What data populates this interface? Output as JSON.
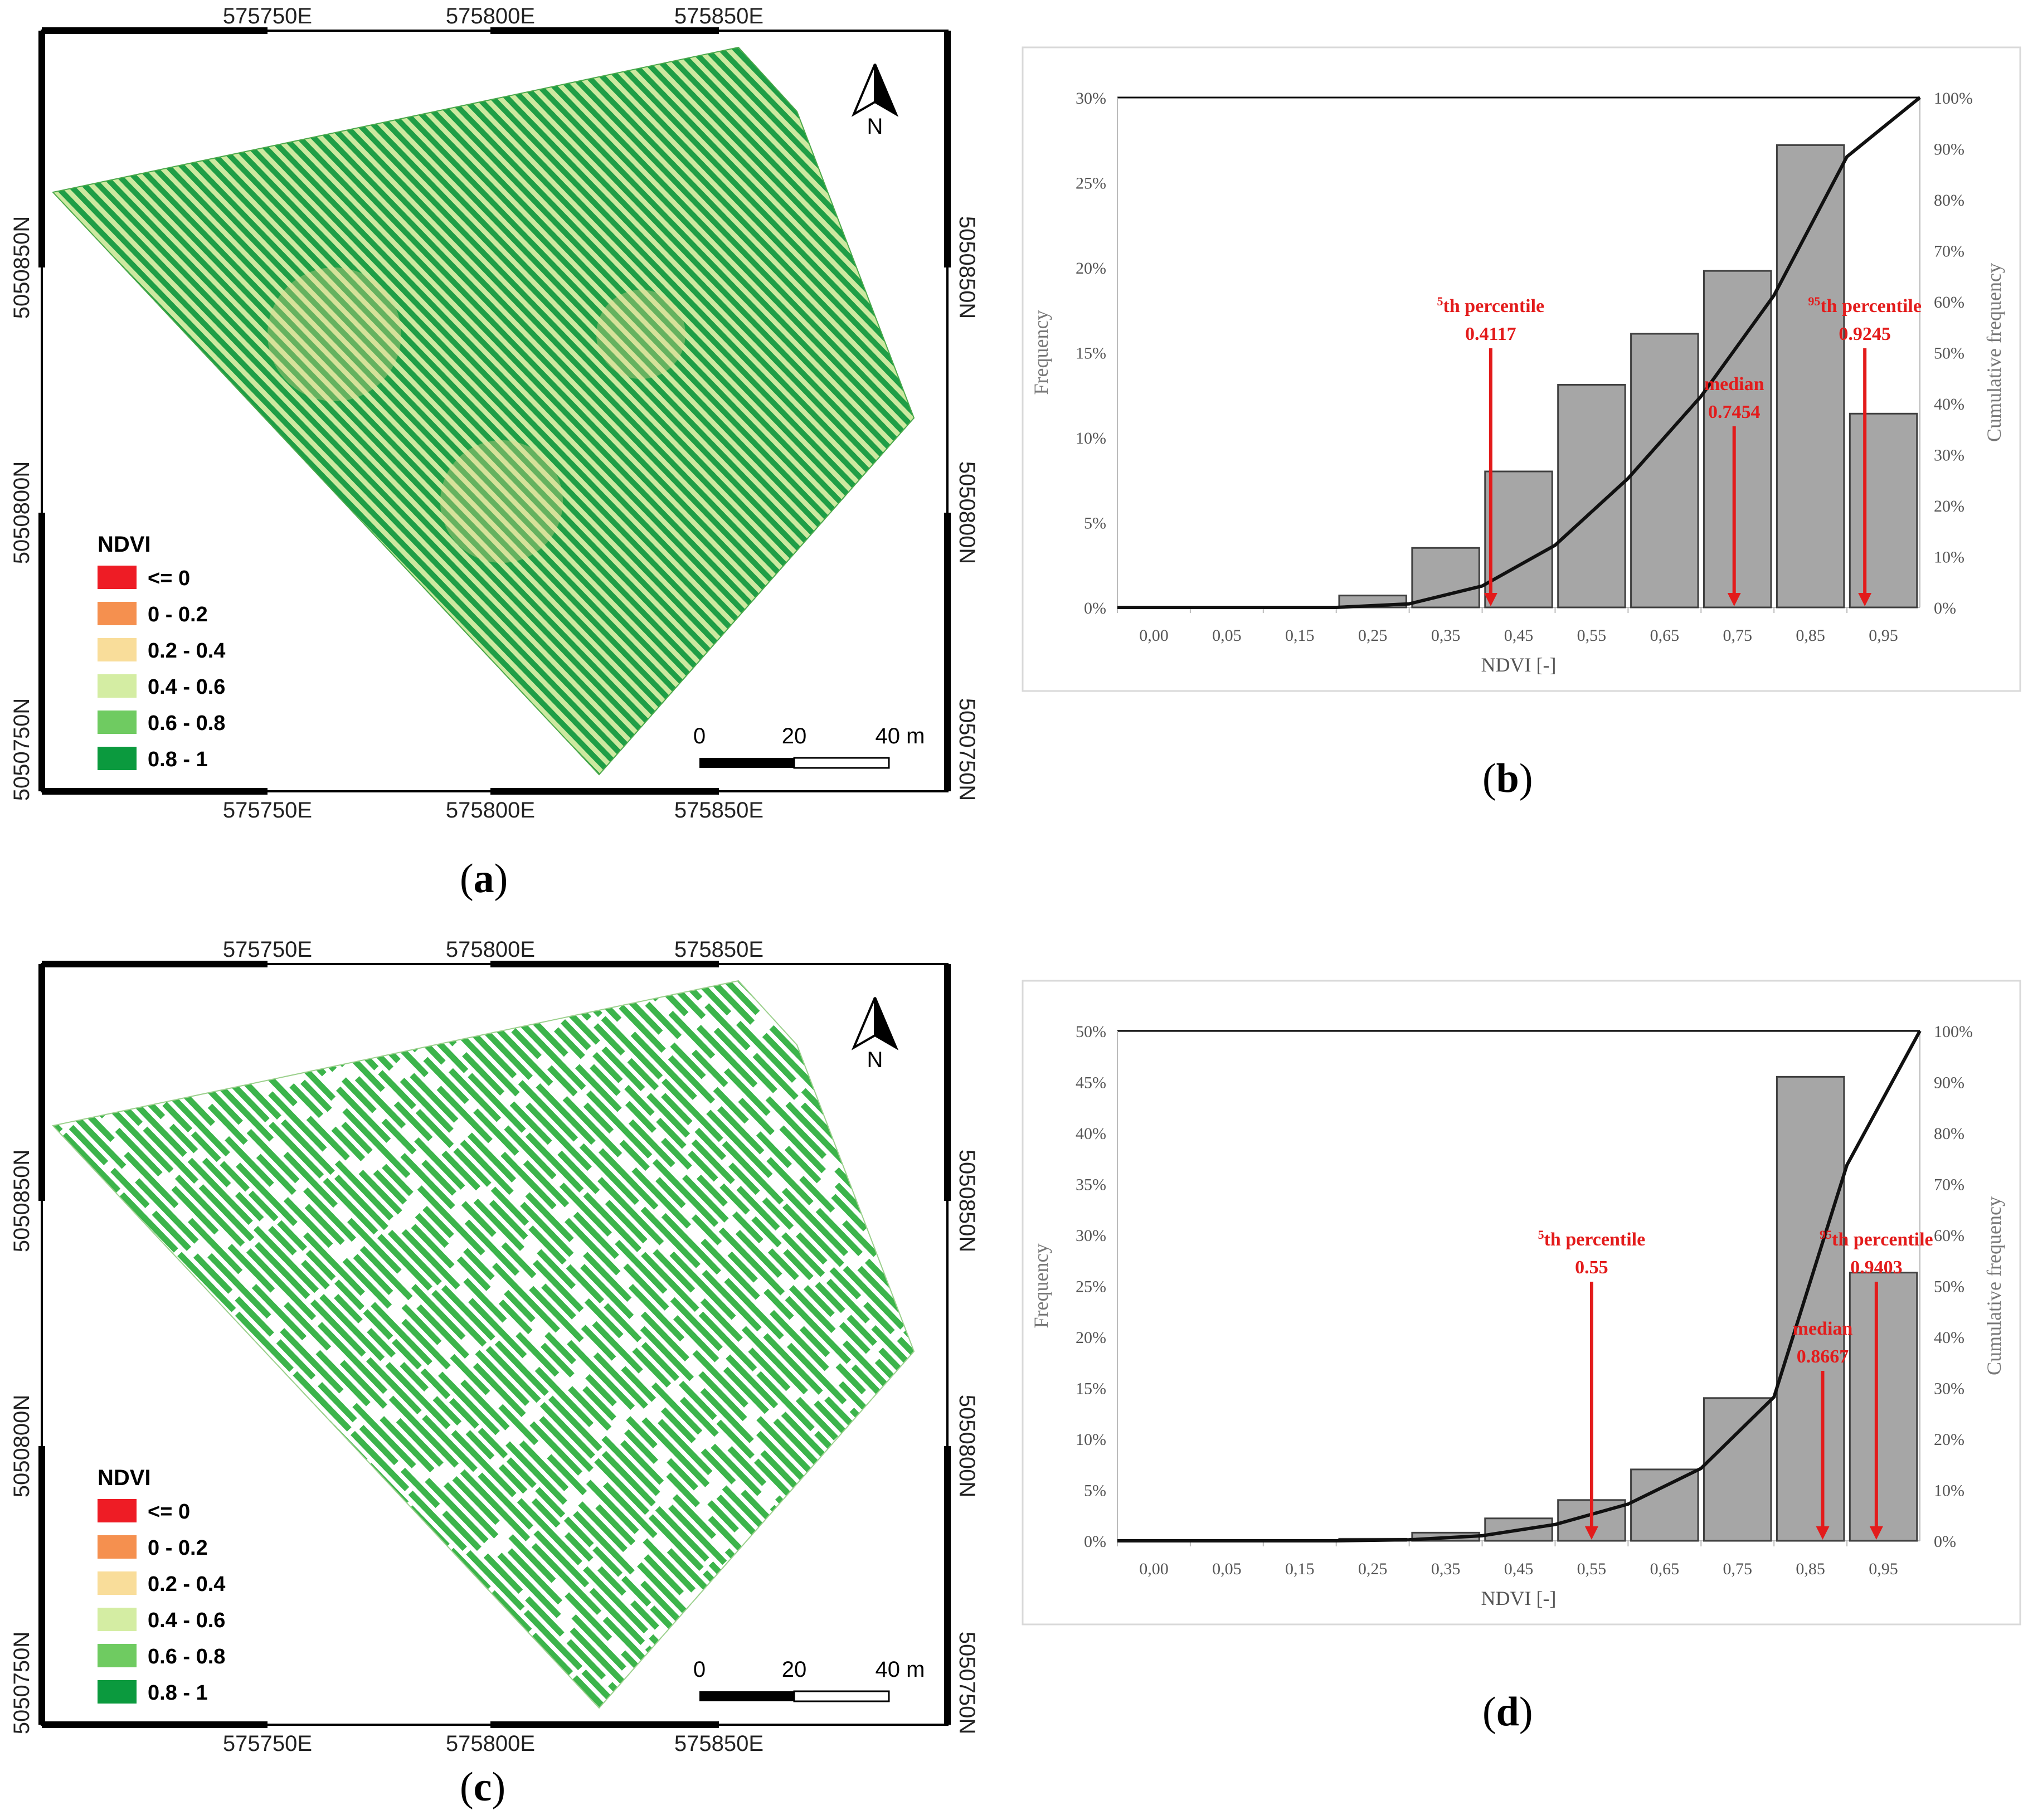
{
  "maps": [
    {
      "id": "a",
      "caption": "a",
      "coord_top": [
        "575750E",
        "575800E",
        "575850E"
      ],
      "coord_bottom": [
        "575750E",
        "575800E",
        "575850E"
      ],
      "coord_left": [
        "5050850N",
        "5050800N",
        "5050750N"
      ],
      "coord_right": [
        "5050850N",
        "5050800N",
        "5050750N"
      ],
      "north": "N",
      "scale_labels": [
        "0",
        "20",
        "40 m"
      ],
      "legend_title": "NDVI",
      "legend": [
        {
          "label": "<= 0",
          "color": "#ee1c25"
        },
        {
          "label": "0 - 0.2",
          "color": "#f5904f"
        },
        {
          "label": "0.2 - 0.4",
          "color": "#f9dd9a"
        },
        {
          "label": "0.4 - 0.6",
          "color": "#d4eda3"
        },
        {
          "label": "0.6 - 0.8",
          "color": "#6fcb61"
        },
        {
          "label": "0.8 - 1",
          "color": "#0b9a3e"
        }
      ],
      "fill_style": "dense"
    },
    {
      "id": "c",
      "caption": "c",
      "coord_top": [
        "575750E",
        "575800E",
        "575850E"
      ],
      "coord_bottom": [
        "575750E",
        "575800E",
        "575850E"
      ],
      "coord_left": [
        "5050850N",
        "5050800N",
        "5050750N"
      ],
      "coord_right": [
        "5050850N",
        "5050800N",
        "5050750N"
      ],
      "north": "N",
      "scale_labels": [
        "0",
        "20",
        "40 m"
      ],
      "legend_title": "NDVI",
      "legend": [
        {
          "label": "<= 0",
          "color": "#ee1c25"
        },
        {
          "label": "0 - 0.2",
          "color": "#f5904f"
        },
        {
          "label": "0.2 - 0.4",
          "color": "#f9dd9a"
        },
        {
          "label": "0.4 - 0.6",
          "color": "#d4eda3"
        },
        {
          "label": "0.6 - 0.8",
          "color": "#6fcb61"
        },
        {
          "label": "0.8 - 1",
          "color": "#0b9a3e"
        }
      ],
      "fill_style": "sparse"
    }
  ],
  "chart_data": [
    {
      "id": "b",
      "caption": "b",
      "type": "bar",
      "xlabel": "NDVI [-]",
      "ylabel": "Frequency",
      "y2label": "Cumulative frequency",
      "categories": [
        "0,00",
        "0,05",
        "0,15",
        "0,25",
        "0,35",
        "0,45",
        "0,55",
        "0,65",
        "0,75",
        "0,85",
        "0,95"
      ],
      "values": [
        0,
        0,
        0,
        0.7,
        3.5,
        8.0,
        13.1,
        16.1,
        19.8,
        27.2,
        11.4
      ],
      "cumulative": [
        0,
        0,
        0,
        0.7,
        4.2,
        12.2,
        25.3,
        41.4,
        61.2,
        88.4,
        100
      ],
      "ylim": [
        0,
        30
      ],
      "yticks": [
        "0%",
        "5%",
        "10%",
        "15%",
        "20%",
        "25%",
        "30%"
      ],
      "y2ticks": [
        "0%",
        "10%",
        "20%",
        "30%",
        "40%",
        "50%",
        "60%",
        "70%",
        "80%",
        "90%",
        "100%"
      ],
      "annotations": [
        {
          "sup": "5",
          "label_top": "th percentile",
          "value": "0.4117",
          "x": 0.4117
        },
        {
          "sup": "",
          "label_top": "median",
          "value": "0.7454",
          "x": 0.7454
        },
        {
          "sup": "95",
          "label_top": "th percentile",
          "value": "0.9245",
          "x": 0.9245
        }
      ]
    },
    {
      "id": "d",
      "caption": "d",
      "type": "bar",
      "xlabel": "NDVI [-]",
      "ylabel": "Frequency",
      "y2label": "Cumulative frequency",
      "categories": [
        "0,00",
        "0,05",
        "0,15",
        "0,25",
        "0,35",
        "0,45",
        "0,55",
        "0,65",
        "0,75",
        "0,85",
        "0,95"
      ],
      "values": [
        0,
        0,
        0,
        0.2,
        0.8,
        2.2,
        4.0,
        7.0,
        14.0,
        45.5,
        26.3
      ],
      "cumulative": [
        0,
        0,
        0,
        0.2,
        1.0,
        3.2,
        7.2,
        14.2,
        28.2,
        73.7,
        100
      ],
      "ylim": [
        0,
        50
      ],
      "yticks": [
        "0%",
        "5%",
        "10%",
        "15%",
        "20%",
        "25%",
        "30%",
        "35%",
        "40%",
        "45%",
        "50%"
      ],
      "y2ticks": [
        "0%",
        "10%",
        "20%",
        "30%",
        "40%",
        "50%",
        "60%",
        "70%",
        "80%",
        "90%",
        "100%"
      ],
      "annotations": [
        {
          "sup": "5",
          "label_top": "th percentile",
          "value": "0.55",
          "x": 0.55
        },
        {
          "sup": "",
          "label_top": "median",
          "value": "0.8667",
          "x": 0.8667
        },
        {
          "sup": "95",
          "label_top": "th percentile",
          "value": "0.9403",
          "x": 0.9403
        }
      ]
    }
  ]
}
